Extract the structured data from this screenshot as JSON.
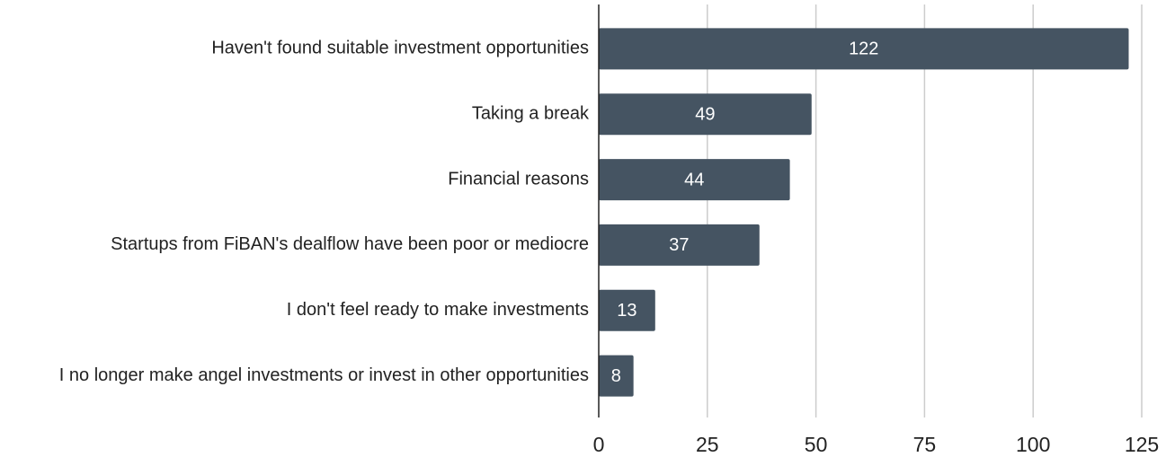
{
  "chart_data": {
    "type": "bar",
    "orientation": "horizontal",
    "categories": [
      "Haven't found suitable investment opportunities",
      "Taking a break",
      "Financial reasons",
      "Startups from FiBAN's dealflow have been poor or mediocre",
      "I don't feel ready to make investments",
      "I no longer make angel investments or invest in other opportunities"
    ],
    "values": [
      122,
      49,
      44,
      37,
      13,
      8
    ],
    "color": "#455462",
    "xlim": [
      0,
      125
    ],
    "xticks": [
      0,
      25,
      50,
      75,
      100,
      125
    ],
    "grid": true
  }
}
